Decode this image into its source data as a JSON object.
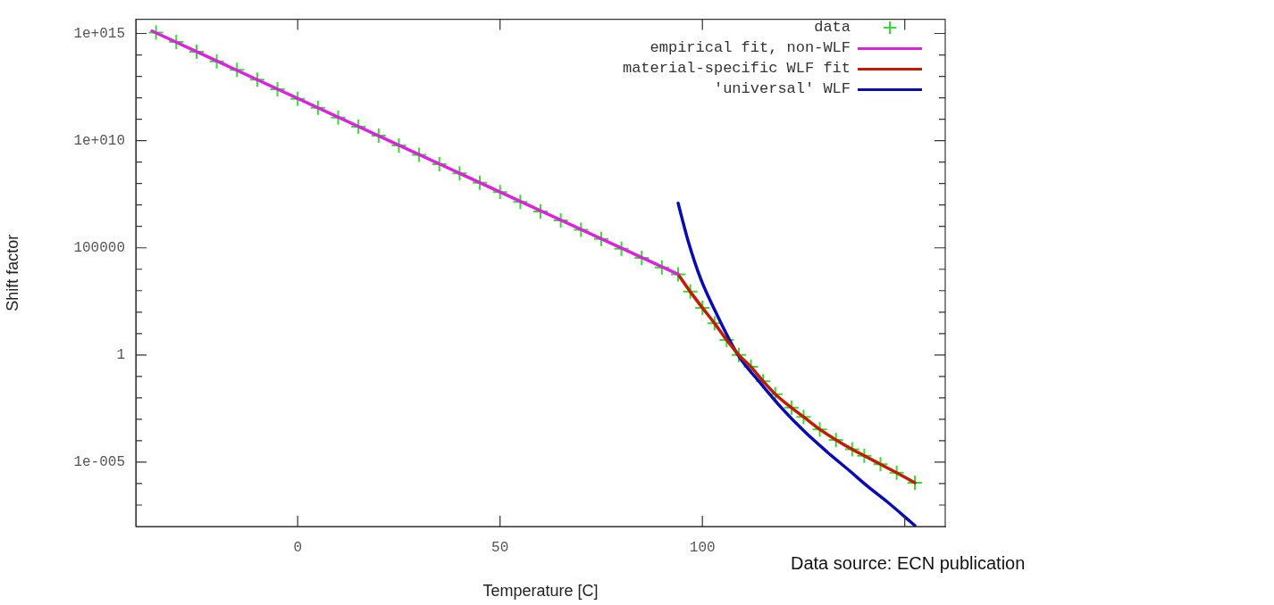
{
  "chart_data": {
    "type": "line",
    "xlabel": "Temperature [C]",
    "ylabel": "Shift factor",
    "log": "y",
    "grid": false,
    "legend": "top right",
    "xlim": [
      -40,
      160
    ],
    "xticks": [
      0,
      50,
      100,
      {
        "value": 150,
        "label": null
      }
    ],
    "ylim": [
      1e-08,
      4600000000000000.0
    ],
    "yticks": [
      {
        "value": 1e-07,
        "label": null
      },
      {
        "value": 1e-06,
        "label": null
      },
      {
        "value": 1e-05,
        "label": "1e-005"
      },
      {
        "value": 0.0001,
        "label": null
      },
      {
        "value": 0.001,
        "label": null
      },
      {
        "value": 0.01,
        "label": null
      },
      {
        "value": 0.1,
        "label": null
      },
      1,
      {
        "value": 10,
        "label": null
      },
      {
        "value": 100,
        "label": null
      },
      {
        "value": 1000,
        "label": null
      },
      {
        "value": 10000,
        "label": null
      },
      100000,
      {
        "value": 1000000.0,
        "label": null
      },
      {
        "value": 10000000.0,
        "label": null
      },
      {
        "value": 100000000.0,
        "label": null
      },
      {
        "value": 1000000000.0,
        "label": null
      },
      {
        "value": 10000000000.0,
        "label": "1e+010"
      },
      {
        "value": 100000000000.0,
        "label": null
      },
      {
        "value": 1000000000000.0,
        "label": null
      },
      {
        "value": 10000000000000.0,
        "label": null
      },
      {
        "value": 100000000000000.0,
        "label": null
      },
      {
        "value": 1000000000000000.0,
        "label": "1e+015"
      }
    ],
    "series": [
      {
        "name": "data",
        "type": "scatter",
        "marker": "cross",
        "color": "#33dd33",
        "x": [
          -35,
          -30,
          -25,
          -20,
          -15,
          -10,
          -5,
          0,
          5,
          10,
          15,
          20,
          25,
          30,
          35,
          40,
          45,
          50,
          55,
          60,
          65,
          70,
          75,
          80,
          85,
          90,
          94,
          97,
          100,
          103,
          106,
          109,
          112,
          115,
          118,
          122,
          125,
          129,
          133,
          137,
          140,
          144,
          148,
          152.5
        ],
        "values": [
          1100000000000000.0,
          400000000000000.0,
          140000000000000.0,
          50000000000000.0,
          20000000000000.0,
          7000000000000.0,
          2500000000000.0,
          900000000000.0,
          340000000000.0,
          120000000000.0,
          45000000000.0,
          17000000000.0,
          6000000000.0,
          2200000000.0,
          800000000.0,
          300000000.0,
          110000000.0,
          40000000.0,
          14000000.0,
          5000000.0,
          1900000.0,
          700000.0,
          260000.0,
          90000.0,
          34000.0,
          12000.0,
          5800.0,
          900.0,
          160.0,
          30.0,
          5,
          1,
          0.28,
          0.06,
          0.015,
          0.0035,
          0.0013,
          0.00034,
          0.00011,
          4e-05,
          2e-05,
          8e-06,
          3.2e-06,
          1.1e-06
        ]
      },
      {
        "name": "empirical fit, non-WLF",
        "type": "line",
        "marker": "none",
        "color": "#dd22dd",
        "x": [
          -36,
          94
        ],
        "values": [
          1300000000000000.0,
          5800.0
        ]
      },
      {
        "name": "material-specific WLF fit",
        "type": "line",
        "marker": "none",
        "color": "#c41a00",
        "x": [
          94,
          97,
          100,
          103,
          106,
          109,
          112,
          115,
          118,
          122,
          125,
          129,
          133,
          137,
          140,
          144,
          148,
          152.5
        ],
        "values": [
          5800.0,
          900.0,
          160.0,
          30.0,
          5,
          1,
          0.28,
          0.06,
          0.015,
          0.0035,
          0.0013,
          0.00034,
          0.00011,
          4e-05,
          2e-05,
          8e-06,
          3.2e-06,
          1.1e-06
        ]
      },
      {
        "name": "'universal' WLF",
        "type": "line",
        "marker": "none",
        "color": "#0a0ab4",
        "x": [
          94,
          96.5,
          99.6,
          103.3,
          108.8,
          114.3,
          119.5,
          125.4,
          131,
          136.4,
          141,
          145.9,
          152.5
        ],
        "values": [
          12000000.0,
          200000.0,
          3500.0,
          100.0,
          1,
          0.05,
          0.0035,
          0.00025,
          2.8e-05,
          3.9e-06,
          7e-07,
          1.3e-07,
          1.1e-08
        ]
      }
    ],
    "annotations": [
      "Data source: ECN publication"
    ]
  }
}
